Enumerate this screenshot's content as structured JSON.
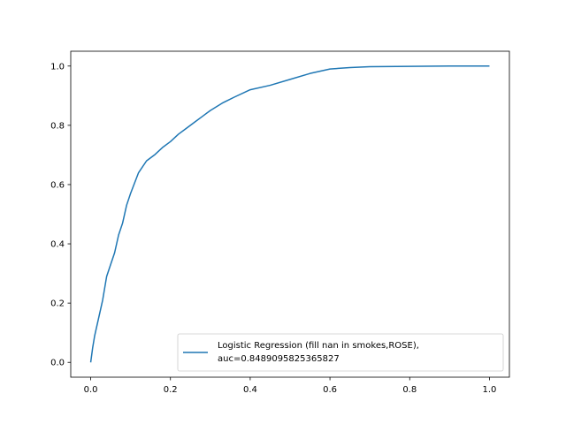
{
  "chart_data": {
    "type": "line",
    "title": "",
    "xlabel": "",
    "ylabel": "",
    "xlim": [
      -0.05,
      1.05
    ],
    "ylim": [
      -0.05,
      1.05
    ],
    "xticks": [
      0.0,
      0.2,
      0.4,
      0.6,
      0.8,
      1.0
    ],
    "xtick_labels": [
      "0.0",
      "0.2",
      "0.4",
      "0.6",
      "0.8",
      "1.0"
    ],
    "yticks": [
      0.0,
      0.2,
      0.4,
      0.6,
      0.8,
      1.0
    ],
    "ytick_labels": [
      "0.0",
      "0.2",
      "0.4",
      "0.6",
      "0.8",
      "1.0"
    ],
    "grid": false,
    "legend_position": "lower-right",
    "series": [
      {
        "name": "Logistic Regression (fill nan in smokes,ROSE),\nauc=0.8489095825365827",
        "legend_lines": [
          "Logistic Regression (fill nan in smokes,ROSE),",
          "auc=0.8489095825365827"
        ],
        "color": "#1f77b4",
        "x": [
          0.0,
          0.005,
          0.01,
          0.015,
          0.02,
          0.03,
          0.04,
          0.05,
          0.06,
          0.07,
          0.08,
          0.09,
          0.1,
          0.12,
          0.14,
          0.16,
          0.18,
          0.2,
          0.22,
          0.24,
          0.26,
          0.28,
          0.3,
          0.33,
          0.36,
          0.4,
          0.45,
          0.5,
          0.55,
          0.6,
          0.65,
          0.7,
          0.8,
          0.9,
          1.0
        ],
        "y": [
          0.0,
          0.05,
          0.09,
          0.12,
          0.15,
          0.21,
          0.29,
          0.33,
          0.37,
          0.43,
          0.47,
          0.53,
          0.57,
          0.64,
          0.68,
          0.7,
          0.725,
          0.745,
          0.77,
          0.79,
          0.81,
          0.83,
          0.85,
          0.875,
          0.895,
          0.92,
          0.935,
          0.955,
          0.975,
          0.99,
          0.995,
          0.998,
          0.999,
          1.0,
          1.0
        ]
      }
    ]
  }
}
